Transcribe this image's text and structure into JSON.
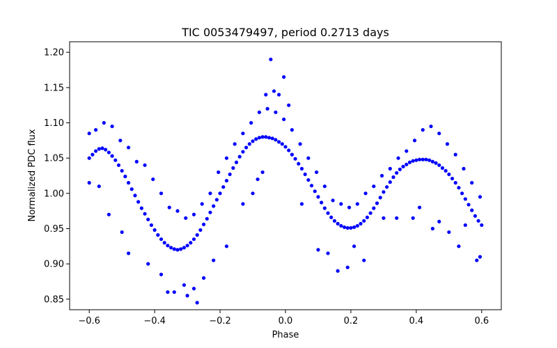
{
  "chart_data": {
    "type": "scatter",
    "title": "TIC 0053479497, period 0.2713 days",
    "xlabel": "Phase",
    "ylabel": "Normalized PDC flux",
    "xlim": [
      -0.66,
      0.66
    ],
    "ylim": [
      0.835,
      1.215
    ],
    "xticks": [
      -0.6,
      -0.4,
      -0.2,
      0.0,
      0.2,
      0.4,
      0.6
    ],
    "xtick_labels": [
      "−0.6",
      "−0.4",
      "−0.2",
      "0.0",
      "0.2",
      "0.4",
      "0.6"
    ],
    "yticks": [
      0.85,
      0.9,
      0.95,
      1.0,
      1.05,
      1.1,
      1.15,
      1.2
    ],
    "ytick_labels": [
      "0.85",
      "0.90",
      "0.95",
      "1.00",
      "1.05",
      "1.10",
      "1.15",
      "1.20"
    ],
    "grid": false,
    "marker_color": "#0000ff",
    "series": [
      {
        "x": [
          -0.6,
          -0.59,
          -0.58,
          -0.57,
          -0.56,
          -0.55,
          -0.54,
          -0.53,
          -0.52,
          -0.51,
          -0.5,
          -0.49,
          -0.48,
          -0.47,
          -0.46,
          -0.45,
          -0.44,
          -0.43,
          -0.42,
          -0.41,
          -0.4,
          -0.39,
          -0.38,
          -0.37,
          -0.36,
          -0.35,
          -0.34,
          -0.33,
          -0.32,
          -0.31,
          -0.3,
          -0.29,
          -0.28,
          -0.27,
          -0.26,
          -0.25,
          -0.24,
          -0.23,
          -0.22,
          -0.21,
          -0.2,
          -0.19,
          -0.18,
          -0.17,
          -0.16,
          -0.15,
          -0.14,
          -0.13,
          -0.12,
          -0.11,
          -0.1,
          -0.09,
          -0.08,
          -0.07,
          -0.06,
          -0.05,
          -0.04,
          -0.03,
          -0.02,
          -0.01,
          0.0,
          0.01,
          0.02,
          0.03,
          0.04,
          0.05,
          0.06,
          0.07,
          0.08,
          0.09,
          0.1,
          0.11,
          0.12,
          0.13,
          0.14,
          0.15,
          0.16,
          0.17,
          0.18,
          0.19,
          0.2,
          0.21,
          0.22,
          0.23,
          0.24,
          0.25,
          0.26,
          0.27,
          0.28,
          0.29,
          0.3,
          0.31,
          0.32,
          0.33,
          0.34,
          0.35,
          0.36,
          0.37,
          0.38,
          0.39,
          0.4,
          0.41,
          0.42,
          0.43,
          0.44,
          0.45,
          0.46,
          0.47,
          0.48,
          0.49,
          0.5,
          0.51,
          0.52,
          0.53,
          0.54,
          0.55,
          0.56,
          0.57,
          0.58,
          0.59,
          0.6,
          -0.6,
          -0.58,
          -0.555,
          -0.53,
          -0.505,
          -0.48,
          -0.455,
          -0.43,
          -0.405,
          -0.38,
          -0.355,
          -0.33,
          -0.305,
          -0.28,
          -0.255,
          -0.23,
          -0.205,
          -0.18,
          -0.155,
          -0.13,
          -0.105,
          -0.08,
          -0.055,
          -0.03,
          -0.005,
          0.02,
          0.045,
          0.07,
          0.095,
          0.12,
          0.145,
          0.17,
          0.195,
          0.22,
          0.245,
          0.27,
          0.295,
          0.32,
          0.345,
          0.37,
          0.395,
          0.42,
          0.445,
          0.47,
          0.495,
          0.52,
          0.545,
          0.57,
          0.595,
          -0.6,
          -0.57,
          -0.54,
          -0.5,
          -0.48,
          -0.42,
          -0.38,
          -0.36,
          -0.34,
          -0.31,
          -0.3,
          -0.28,
          -0.27,
          -0.25,
          -0.22,
          -0.18,
          -0.13,
          -0.1,
          -0.085,
          -0.07,
          -0.06,
          -0.045,
          -0.035,
          -0.02,
          -0.005,
          0.01,
          0.05,
          0.1,
          0.13,
          0.16,
          0.19,
          0.21,
          0.24,
          0.3,
          0.34,
          0.39,
          0.41,
          0.45,
          0.47,
          0.5,
          0.53,
          0.55,
          0.585,
          0.595
        ],
        "y": [
          1.05,
          1.055,
          1.06,
          1.063,
          1.064,
          1.062,
          1.058,
          1.053,
          1.047,
          1.04,
          1.032,
          1.024,
          1.015,
          1.006,
          0.997,
          0.988,
          0.979,
          0.971,
          0.963,
          0.955,
          0.948,
          0.941,
          0.935,
          0.93,
          0.926,
          0.923,
          0.921,
          0.92,
          0.921,
          0.923,
          0.926,
          0.93,
          0.935,
          0.941,
          0.948,
          0.956,
          0.964,
          0.973,
          0.982,
          0.991,
          1.0,
          1.009,
          1.018,
          1.027,
          1.036,
          1.044,
          1.052,
          1.059,
          1.065,
          1.07,
          1.074,
          1.077,
          1.079,
          1.08,
          1.08,
          1.079,
          1.078,
          1.076,
          1.073,
          1.07,
          1.066,
          1.061,
          1.055,
          1.049,
          1.042,
          1.035,
          1.027,
          1.019,
          1.011,
          1.003,
          0.995,
          0.987,
          0.979,
          0.972,
          0.966,
          0.961,
          0.957,
          0.954,
          0.952,
          0.951,
          0.951,
          0.952,
          0.954,
          0.957,
          0.961,
          0.966,
          0.972,
          0.979,
          0.986,
          0.994,
          1.002,
          1.009,
          1.016,
          1.023,
          1.029,
          1.034,
          1.038,
          1.041,
          1.044,
          1.046,
          1.047,
          1.048,
          1.048,
          1.048,
          1.047,
          1.045,
          1.043,
          1.04,
          1.036,
          1.032,
          1.027,
          1.021,
          1.015,
          1.008,
          1.0,
          0.992,
          0.984,
          0.976,
          0.968,
          0.961,
          0.955,
          1.085,
          1.09,
          1.1,
          1.095,
          1.075,
          1.065,
          1.045,
          1.04,
          1.02,
          1.0,
          0.98,
          0.975,
          0.965,
          0.97,
          0.985,
          1.0,
          1.03,
          1.05,
          1.07,
          1.085,
          1.1,
          1.115,
          1.12,
          1.115,
          1.105,
          1.09,
          1.07,
          1.05,
          1.03,
          1.01,
          0.99,
          0.985,
          0.98,
          0.985,
          1.0,
          1.01,
          1.025,
          1.035,
          1.05,
          1.06,
          1.075,
          1.09,
          1.095,
          1.085,
          1.07,
          1.055,
          1.035,
          1.015,
          0.995,
          1.015,
          1.01,
          0.97,
          0.945,
          0.915,
          0.9,
          0.885,
          0.86,
          0.86,
          0.87,
          0.855,
          0.865,
          0.845,
          0.88,
          0.905,
          0.925,
          0.985,
          1.0,
          1.02,
          1.03,
          1.14,
          1.19,
          1.145,
          1.14,
          1.165,
          1.125,
          0.985,
          0.92,
          0.915,
          0.89,
          0.895,
          0.925,
          0.905,
          0.965,
          0.965,
          0.965,
          0.98,
          0.95,
          0.96,
          0.945,
          0.925,
          0.955,
          0.905,
          0.91
        ]
      }
    ]
  }
}
